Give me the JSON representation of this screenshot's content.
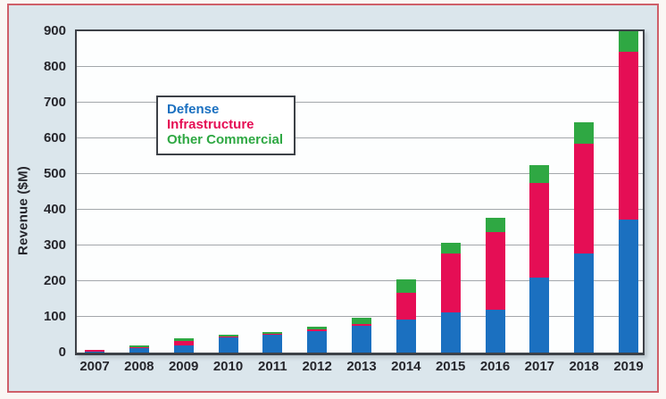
{
  "chart_data": {
    "type": "bar",
    "stacked": true,
    "title": "",
    "xlabel": "",
    "ylabel": "Revenue ($M)",
    "ylim": [
      0,
      900
    ],
    "yticks": [
      0,
      100,
      200,
      300,
      400,
      500,
      600,
      700,
      800,
      900
    ],
    "grid": true,
    "legend_position": "top-left",
    "categories": [
      "2007",
      "2008",
      "2009",
      "2010",
      "2011",
      "2012",
      "2013",
      "2014",
      "2015",
      "2016",
      "2017",
      "2018",
      "2019"
    ],
    "series": [
      {
        "name": "Defense",
        "color": "#1b70c0",
        "values": [
          2,
          14,
          20,
          44,
          50,
          60,
          75,
          93,
          112,
          120,
          210,
          278,
          372
        ]
      },
      {
        "name": "Infrastructure",
        "color": "#e50e55",
        "values": [
          6,
          2,
          12,
          1,
          2,
          4,
          6,
          75,
          166,
          218,
          265,
          306,
          470
        ]
      },
      {
        "name": "Other Commercial",
        "color": "#2fa843",
        "values": [
          0,
          4,
          8,
          5,
          6,
          8,
          16,
          37,
          29,
          40,
          50,
          60,
          58
        ]
      }
    ]
  },
  "colors": {
    "frame_border": "#cf5f69",
    "figure_background": "#dbe6ec",
    "plot_background": "#fdfefe",
    "plot_border": "#3d4147",
    "gridline": "#a3a7ab",
    "tick_text": "#26262c"
  }
}
